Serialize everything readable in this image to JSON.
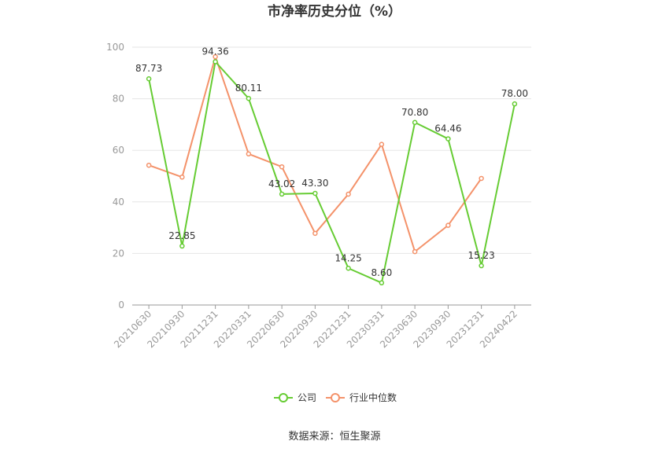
{
  "chart_data": {
    "type": "line",
    "title": "市净率历史分位（%）",
    "categories": [
      "20210630",
      "20210930",
      "20211231",
      "20220331",
      "20220630",
      "20220930",
      "20221231",
      "20230331",
      "20230630",
      "20230930",
      "20231231",
      "20240422"
    ],
    "ylim": [
      0,
      100
    ],
    "yticks": [
      0,
      20,
      40,
      60,
      80,
      100
    ],
    "grid": true,
    "legend_position": "bottom",
    "series": [
      {
        "name": "公司",
        "color": "#66cc33",
        "values": [
          87.73,
          22.85,
          94.36,
          80.11,
          43.02,
          43.3,
          14.25,
          8.6,
          70.8,
          64.46,
          15.23,
          78.0
        ],
        "labels": [
          "87.73",
          "22.85",
          "94.36",
          "80.11",
          "43.02",
          "43.30",
          "14.25",
          "8.60",
          "70.80",
          "64.46",
          "15.23",
          "78.00"
        ]
      },
      {
        "name": "行业中位数",
        "color": "#f4926a",
        "values": [
          54.2,
          49.6,
          96.3,
          58.6,
          53.6,
          27.8,
          43.0,
          62.3,
          20.7,
          30.9,
          49.1,
          null
        ]
      }
    ]
  },
  "footer": {
    "source": "数据来源：恒生聚源"
  }
}
